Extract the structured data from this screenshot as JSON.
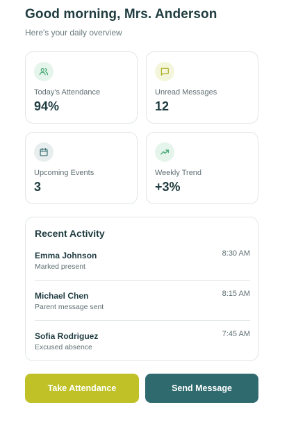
{
  "header": {
    "greeting": "Good morning, Mrs. Anderson",
    "subtitle": "Here's your daily overview"
  },
  "stats": [
    {
      "icon": "users-icon",
      "label": "Today's Attendance",
      "value": "94%",
      "icon_bg": "#e6f5ec",
      "icon_color": "#3aa36a"
    },
    {
      "icon": "message-icon",
      "label": "Unread Messages",
      "value": "12",
      "icon_bg": "#f4f6dc",
      "icon_color": "#a8ab1f"
    },
    {
      "icon": "calendar-icon",
      "label": "Upcoming Events",
      "value": "3",
      "icon_bg": "#e8eeee",
      "icon_color": "#2f6a6e"
    },
    {
      "icon": "trending-up-icon",
      "label": "Weekly Trend",
      "value": "+3%",
      "icon_bg": "#e6f5ec",
      "icon_color": "#3aa36a"
    }
  ],
  "activity": {
    "title": "Recent Activity",
    "items": [
      {
        "name": "Emma Johnson",
        "description": "Marked present",
        "time": "8:30 AM"
      },
      {
        "name": "Michael Chen",
        "description": "Parent message sent",
        "time": "8:15 AM"
      },
      {
        "name": "Sofia Rodriguez",
        "description": "Excused absence",
        "time": "7:45 AM"
      }
    ]
  },
  "actions": {
    "take_attendance": "Take Attendance",
    "send_message": "Send Message"
  },
  "colors": {
    "primary_lime": "#bfc126",
    "primary_teal": "#2f6a6e",
    "text_dark": "#1f3b3f",
    "text_muted": "#5f6f72"
  }
}
